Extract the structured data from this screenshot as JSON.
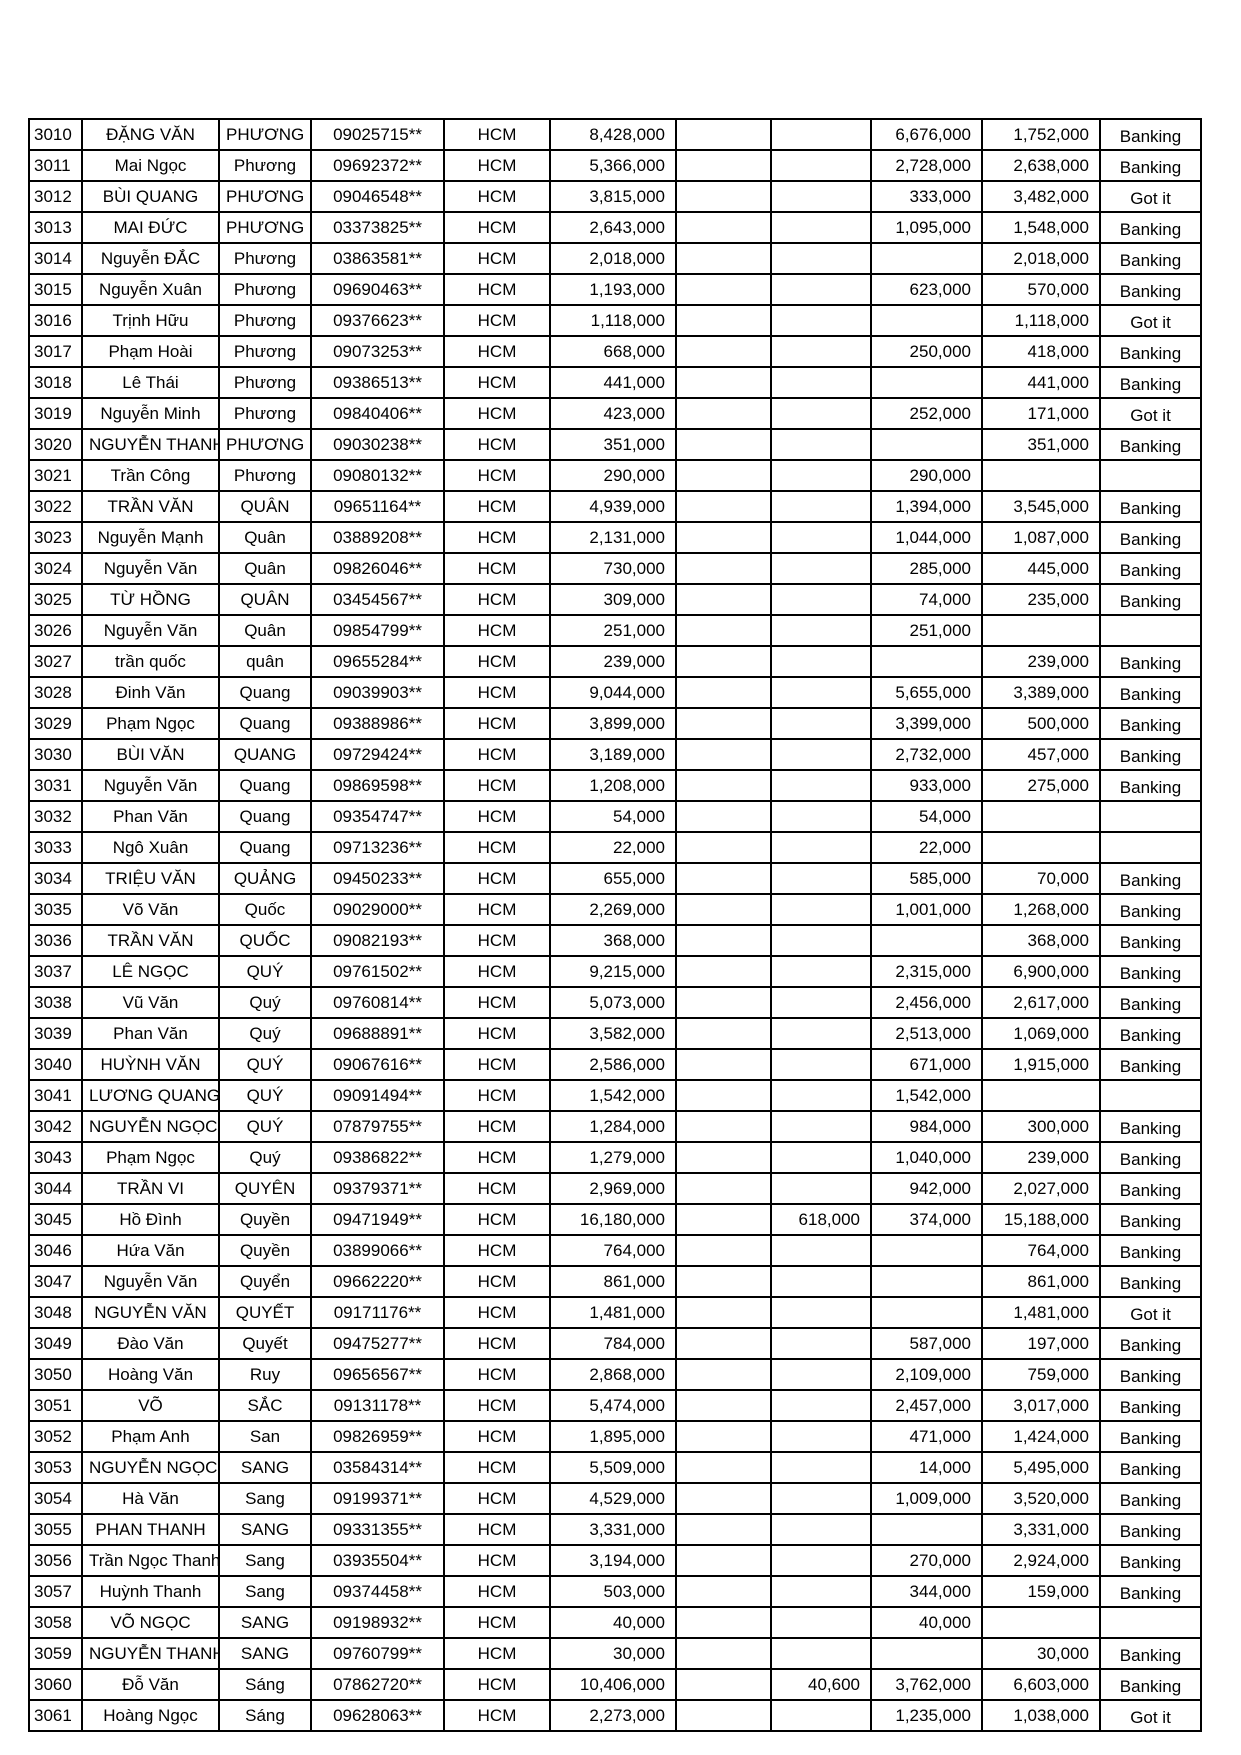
{
  "rows": [
    [
      "3010",
      "ĐẶNG VĂN",
      "PHƯƠNG",
      "09025715**",
      "HCM",
      "8,428,000",
      "",
      "",
      "6,676,000",
      "1,752,000",
      "Banking"
    ],
    [
      "3011",
      "Mai Ngọc",
      "Phương",
      "09692372**",
      "HCM",
      "5,366,000",
      "",
      "",
      "2,728,000",
      "2,638,000",
      "Banking"
    ],
    [
      "3012",
      "BÙI QUANG",
      "PHƯƠNG",
      "09046548**",
      "HCM",
      "3,815,000",
      "",
      "",
      "333,000",
      "3,482,000",
      "Got it"
    ],
    [
      "3013",
      "MAI ĐỨC",
      "PHƯƠNG",
      "03373825**",
      "HCM",
      "2,643,000",
      "",
      "",
      "1,095,000",
      "1,548,000",
      "Banking"
    ],
    [
      "3014",
      "Nguyễn ĐẮC",
      "Phương",
      "03863581**",
      "HCM",
      "2,018,000",
      "",
      "",
      "",
      "2,018,000",
      "Banking"
    ],
    [
      "3015",
      "Nguyễn Xuân",
      "Phương",
      "09690463**",
      "HCM",
      "1,193,000",
      "",
      "",
      "623,000",
      "570,000",
      "Banking"
    ],
    [
      "3016",
      "Trịnh Hữu",
      "Phương",
      "09376623**",
      "HCM",
      "1,118,000",
      "",
      "",
      "",
      "1,118,000",
      "Got it"
    ],
    [
      "3017",
      "Phạm Hoài",
      "Phương",
      "09073253**",
      "HCM",
      "668,000",
      "",
      "",
      "250,000",
      "418,000",
      "Banking"
    ],
    [
      "3018",
      "Lê Thái",
      "Phương",
      "09386513**",
      "HCM",
      "441,000",
      "",
      "",
      "",
      "441,000",
      "Banking"
    ],
    [
      "3019",
      "Nguyễn Minh",
      "Phương",
      "09840406**",
      "HCM",
      "423,000",
      "",
      "",
      "252,000",
      "171,000",
      "Got it"
    ],
    [
      "3020",
      "NGUYỄN THANH",
      "PHƯƠNG",
      "09030238**",
      "HCM",
      "351,000",
      "",
      "",
      "",
      "351,000",
      "Banking"
    ],
    [
      "3021",
      "Trần Công",
      "Phương",
      "09080132**",
      "HCM",
      "290,000",
      "",
      "",
      "290,000",
      "",
      ""
    ],
    [
      "3022",
      "TRẦN VĂN",
      "QUÂN",
      "09651164**",
      "HCM",
      "4,939,000",
      "",
      "",
      "1,394,000",
      "3,545,000",
      "Banking"
    ],
    [
      "3023",
      "Nguyễn Mạnh",
      "Quân",
      "03889208**",
      "HCM",
      "2,131,000",
      "",
      "",
      "1,044,000",
      "1,087,000",
      "Banking"
    ],
    [
      "3024",
      "Nguyễn Văn",
      "Quân",
      "09826046**",
      "HCM",
      "730,000",
      "",
      "",
      "285,000",
      "445,000",
      "Banking"
    ],
    [
      "3025",
      "TỪ HỒNG",
      "QUÂN",
      "03454567**",
      "HCM",
      "309,000",
      "",
      "",
      "74,000",
      "235,000",
      "Banking"
    ],
    [
      "3026",
      "Nguyễn Văn",
      "Quân",
      "09854799**",
      "HCM",
      "251,000",
      "",
      "",
      "251,000",
      "",
      ""
    ],
    [
      "3027",
      "trần quốc",
      "quân",
      "09655284**",
      "HCM",
      "239,000",
      "",
      "",
      "",
      "239,000",
      "Banking"
    ],
    [
      "3028",
      "Đinh Văn",
      "Quang",
      "09039903**",
      "HCM",
      "9,044,000",
      "",
      "",
      "5,655,000",
      "3,389,000",
      "Banking"
    ],
    [
      "3029",
      "Phạm Ngọc",
      "Quang",
      "09388986**",
      "HCM",
      "3,899,000",
      "",
      "",
      "3,399,000",
      "500,000",
      "Banking"
    ],
    [
      "3030",
      "BÙI VĂN",
      "QUANG",
      "09729424**",
      "HCM",
      "3,189,000",
      "",
      "",
      "2,732,000",
      "457,000",
      "Banking"
    ],
    [
      "3031",
      "Nguyễn Văn",
      "Quang",
      "09869598**",
      "HCM",
      "1,208,000",
      "",
      "",
      "933,000",
      "275,000",
      "Banking"
    ],
    [
      "3032",
      "Phan Văn",
      "Quang",
      "09354747**",
      "HCM",
      "54,000",
      "",
      "",
      "54,000",
      "",
      ""
    ],
    [
      "3033",
      "Ngô Xuân",
      "Quang",
      "09713236**",
      "HCM",
      "22,000",
      "",
      "",
      "22,000",
      "",
      ""
    ],
    [
      "3034",
      "TRIỆU VĂN",
      "QUẢNG",
      "09450233**",
      "HCM",
      "655,000",
      "",
      "",
      "585,000",
      "70,000",
      "Banking"
    ],
    [
      "3035",
      "Võ Văn",
      "Quốc",
      "09029000**",
      "HCM",
      "2,269,000",
      "",
      "",
      "1,001,000",
      "1,268,000",
      "Banking"
    ],
    [
      "3036",
      "TRẦN VĂN",
      "QUỐC",
      "09082193**",
      "HCM",
      "368,000",
      "",
      "",
      "",
      "368,000",
      "Banking"
    ],
    [
      "3037",
      "LÊ NGỌC",
      "QUÝ",
      "09761502**",
      "HCM",
      "9,215,000",
      "",
      "",
      "2,315,000",
      "6,900,000",
      "Banking"
    ],
    [
      "3038",
      "Vũ Văn",
      "Quý",
      "09760814**",
      "HCM",
      "5,073,000",
      "",
      "",
      "2,456,000",
      "2,617,000",
      "Banking"
    ],
    [
      "3039",
      "Phan Văn",
      "Quý",
      "09688891**",
      "HCM",
      "3,582,000",
      "",
      "",
      "2,513,000",
      "1,069,000",
      "Banking"
    ],
    [
      "3040",
      "HUỲNH VĂN",
      "QUÝ",
      "09067616**",
      "HCM",
      "2,586,000",
      "",
      "",
      "671,000",
      "1,915,000",
      "Banking"
    ],
    [
      "3041",
      "LƯƠNG QUANG",
      "QUÝ",
      "09091494**",
      "HCM",
      "1,542,000",
      "",
      "",
      "1,542,000",
      "",
      ""
    ],
    [
      "3042",
      "NGUYỄN NGỌC",
      "QUÝ",
      "07879755**",
      "HCM",
      "1,284,000",
      "",
      "",
      "984,000",
      "300,000",
      "Banking"
    ],
    [
      "3043",
      "Phạm Ngọc",
      "Quý",
      "09386822**",
      "HCM",
      "1,279,000",
      "",
      "",
      "1,040,000",
      "239,000",
      "Banking"
    ],
    [
      "3044",
      "TRẦN VI",
      "QUYÊN",
      "09379371**",
      "HCM",
      "2,969,000",
      "",
      "",
      "942,000",
      "2,027,000",
      "Banking"
    ],
    [
      "3045",
      "Hồ Đình",
      "Quyền",
      "09471949**",
      "HCM",
      "16,180,000",
      "",
      "618,000",
      "374,000",
      "15,188,000",
      "Banking"
    ],
    [
      "3046",
      "Hứa Văn",
      "Quyền",
      "03899066**",
      "HCM",
      "764,000",
      "",
      "",
      "",
      "764,000",
      "Banking"
    ],
    [
      "3047",
      "Nguyễn Văn",
      "Quyển",
      "09662220**",
      "HCM",
      "861,000",
      "",
      "",
      "",
      "861,000",
      "Banking"
    ],
    [
      "3048",
      "NGUYỄN VĂN",
      "QUYẾT",
      "09171176**",
      "HCM",
      "1,481,000",
      "",
      "",
      "",
      "1,481,000",
      "Got it"
    ],
    [
      "3049",
      "Đào Văn",
      "Quyết",
      "09475277**",
      "HCM",
      "784,000",
      "",
      "",
      "587,000",
      "197,000",
      "Banking"
    ],
    [
      "3050",
      "Hoàng Văn",
      "Ruy",
      "09656567**",
      "HCM",
      "2,868,000",
      "",
      "",
      "2,109,000",
      "759,000",
      "Banking"
    ],
    [
      "3051",
      "VÕ",
      "SẮC",
      "09131178**",
      "HCM",
      "5,474,000",
      "",
      "",
      "2,457,000",
      "3,017,000",
      "Banking"
    ],
    [
      "3052",
      "Phạm Anh",
      "San",
      "09826959**",
      "HCM",
      "1,895,000",
      "",
      "",
      "471,000",
      "1,424,000",
      "Banking"
    ],
    [
      "3053",
      "NGUYỄN NGỌC",
      "SANG",
      "03584314**",
      "HCM",
      "5,509,000",
      "",
      "",
      "14,000",
      "5,495,000",
      "Banking"
    ],
    [
      "3054",
      "Hà Văn",
      "Sang",
      "09199371**",
      "HCM",
      "4,529,000",
      "",
      "",
      "1,009,000",
      "3,520,000",
      "Banking"
    ],
    [
      "3055",
      "PHAN THANH",
      "SANG",
      "09331355**",
      "HCM",
      "3,331,000",
      "",
      "",
      "",
      "3,331,000",
      "Banking"
    ],
    [
      "3056",
      "Trần Ngọc Thanh",
      "Sang",
      "03935504**",
      "HCM",
      "3,194,000",
      "",
      "",
      "270,000",
      "2,924,000",
      "Banking"
    ],
    [
      "3057",
      "Huỳnh Thanh",
      "Sang",
      "09374458**",
      "HCM",
      "503,000",
      "",
      "",
      "344,000",
      "159,000",
      "Banking"
    ],
    [
      "3058",
      "VÕ NGỌC",
      "SANG",
      "09198932**",
      "HCM",
      "40,000",
      "",
      "",
      "40,000",
      "",
      ""
    ],
    [
      "3059",
      "NGUYỄN THANH",
      "SANG",
      "09760799**",
      "HCM",
      "30,000",
      "",
      "",
      "",
      "30,000",
      "Banking"
    ],
    [
      "3060",
      "Đỗ Văn",
      "Sáng",
      "07862720**",
      "HCM",
      "10,406,000",
      "",
      "40,600",
      "3,762,000",
      "6,603,000",
      "Banking"
    ],
    [
      "3061",
      "Hoàng Ngọc",
      "Sáng",
      "09628063**",
      "HCM",
      "2,273,000",
      "",
      "",
      "1,235,000",
      "1,038,000",
      "Got it"
    ]
  ]
}
